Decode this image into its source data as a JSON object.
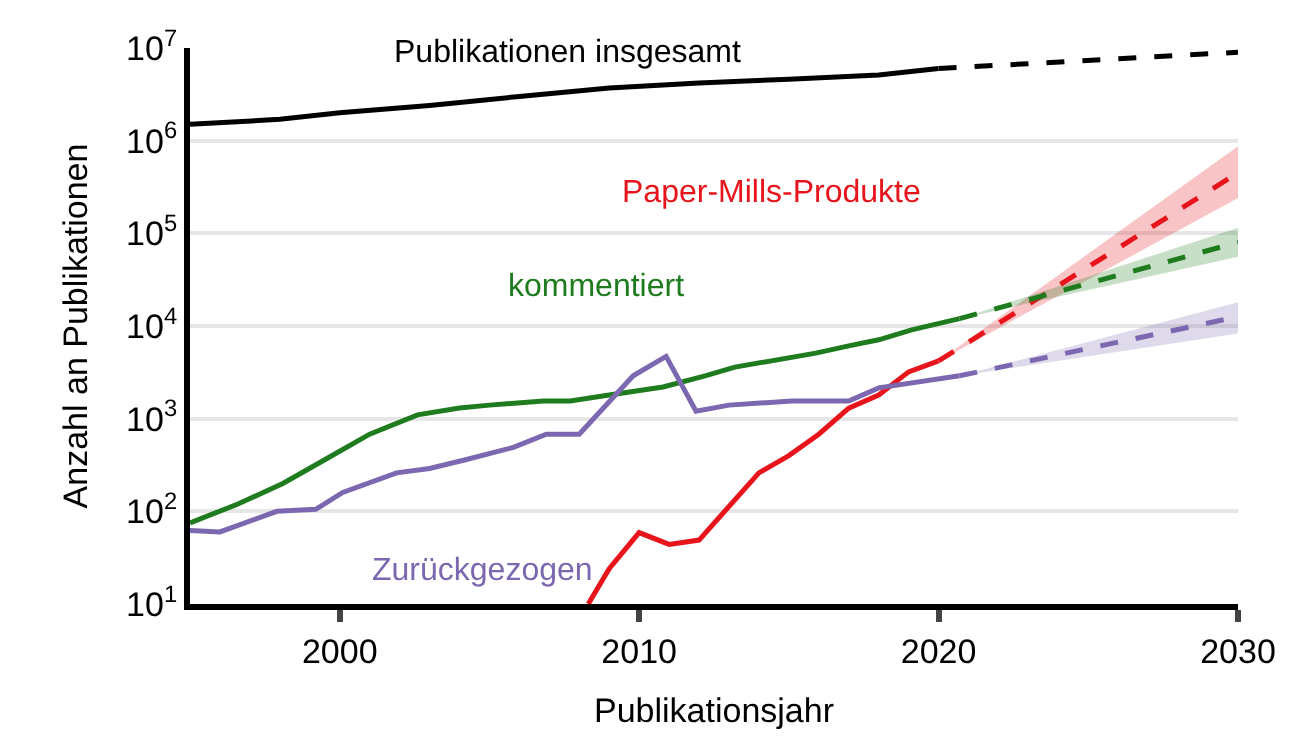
{
  "chart_data": {
    "type": "line",
    "xlabel": "Publikationsjahr",
    "ylabel": "Anzahl an Publikationen",
    "log": "y",
    "grid": "y",
    "legend": false,
    "marker": "none",
    "xlim": [
      1995,
      2030
    ],
    "xticks": [
      2000,
      2010,
      2020,
      2030
    ],
    "ylim": [
      10,
      10000000
    ],
    "yticks": [
      {
        "value": 10,
        "label": "10$^{1}$"
      },
      {
        "value": 100,
        "label": "10$^{2}$"
      },
      {
        "value": 1000,
        "label": "10$^{3}$"
      },
      {
        "value": 10000,
        "label": "10$^{4}$"
      },
      {
        "value": 100000,
        "label": "10$^{5}$"
      },
      {
        "value": 1000000,
        "label": "10$^{6}$"
      },
      {
        "value": 10000000,
        "label": "10$^{7}$"
      }
    ],
    "series": [
      {
        "name": "Publikationen insgesamt",
        "color": "#000000",
        "line_style": "solid",
        "x": [
          1995,
          1998,
          2000,
          2003,
          2006,
          2009,
          2012,
          2015,
          2018,
          2020
        ],
        "values": [
          1500000,
          1700000,
          2000000,
          2400000,
          3000000,
          3700000,
          4200000,
          4600000,
          5100000,
          6000000
        ]
      },
      {
        "name": "Paper-Mills-Produkte",
        "color": "#e8141c",
        "line_style": "solid",
        "x": [
          2008.3,
          2009,
          2010,
          2011,
          2012,
          2014,
          2015,
          2016,
          2017,
          2018,
          2019,
          2020
        ],
        "values": [
          10,
          24,
          59,
          44,
          49,
          260,
          400,
          680,
          1300,
          1800,
          3200,
          4200
        ]
      },
      {
        "name": "kommentiert",
        "color": "#1e7b1e",
        "line_style": "solid",
        "x": [
          1995,
          1996.6,
          1998.1,
          1999.5,
          2001,
          2002.6,
          2004,
          2005,
          2006.8,
          2007.7,
          2009,
          2010.8,
          2012.2,
          2013.2,
          2015.9,
          2017,
          2018,
          2019.1,
          2020.7
        ],
        "values": [
          75,
          120,
          200,
          360,
          680,
          1100,
          1300,
          1400,
          1550,
          1550,
          1800,
          2200,
          2900,
          3600,
          5100,
          6100,
          7100,
          9100,
          12000
        ]
      },
      {
        "name": "Zurückgezogen",
        "color": "#7b68b0",
        "line_style": "solid",
        "x": [
          1995,
          1996,
          1997.9,
          1999.2,
          2000.1,
          2001.9,
          2003,
          2004.2,
          2005.8,
          2006.9,
          2008,
          2009.8,
          2010.9,
          2011.9,
          2013,
          2015.1,
          2017,
          2018,
          2020.7
        ],
        "values": [
          62,
          60,
          100,
          105,
          160,
          260,
          290,
          360,
          490,
          680,
          680,
          2900,
          4700,
          1200,
          1400,
          1550,
          1550,
          2150,
          2900
        ]
      },
      {
        "color": "#000000",
        "line_style": "dashed",
        "x": [
          2020,
          2030
        ],
        "values": [
          6000000,
          9000000
        ]
      },
      {
        "color": "#e8141c",
        "line_style": "dashed",
        "x": [
          2020,
          2030
        ],
        "values": [
          4200,
          450000
        ],
        "lower": [
          4200,
          240000
        ],
        "upper": [
          4200,
          870000
        ]
      },
      {
        "color": "#1e7b1e",
        "line_style": "dashed",
        "x": [
          2020.7,
          2030
        ],
        "values": [
          12000,
          80000
        ],
        "lower": [
          12000,
          56000
        ],
        "upper": [
          12000,
          115000
        ]
      },
      {
        "color": "#7b68b0",
        "line_style": "dashed",
        "x": [
          2020.7,
          2030
        ],
        "values": [
          2900,
          12600
        ],
        "lower": [
          2900,
          8300
        ],
        "upper": [
          2900,
          18000
        ]
      }
    ]
  }
}
